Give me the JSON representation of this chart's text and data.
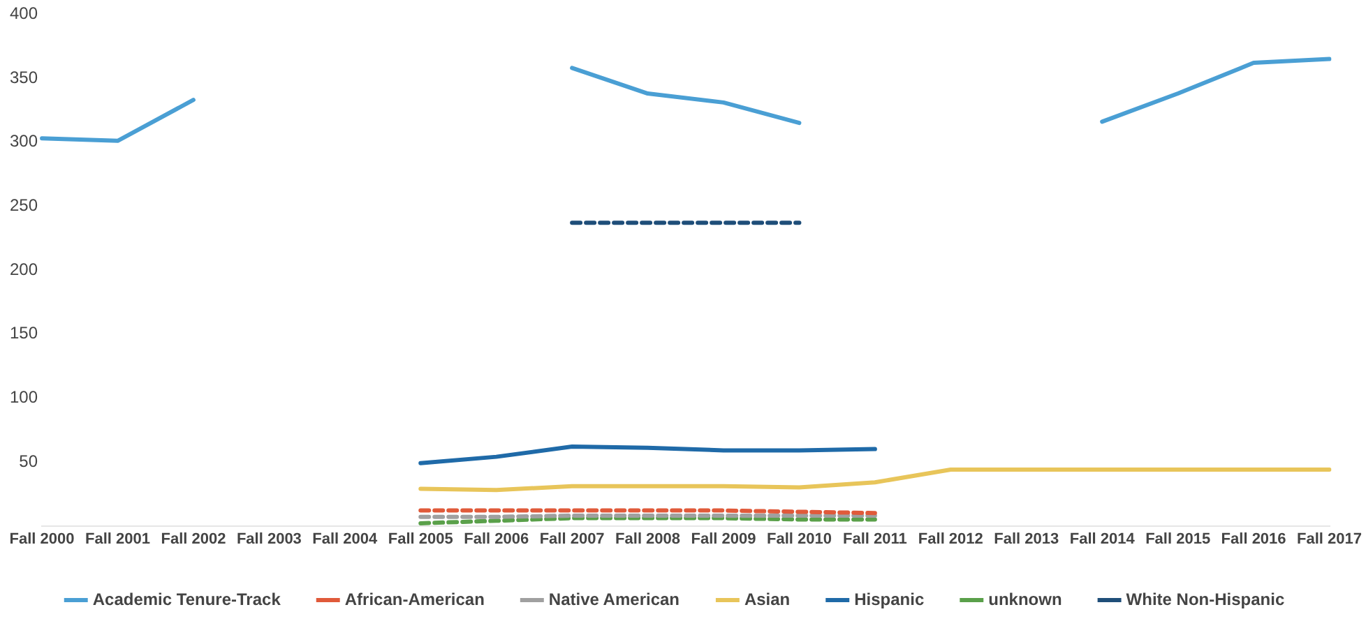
{
  "chart_data": {
    "type": "line",
    "categories": [
      "Fall 2000",
      "Fall 2001",
      "Fall 2002",
      "Fall 2003",
      "Fall 2004",
      "Fall 2005",
      "Fall 2006",
      "Fall 2007",
      "Fall 2008",
      "Fall 2009",
      "Fall 2010",
      "Fall 2011",
      "Fall 2012",
      "Fall 2013",
      "Fall 2014",
      "Fall 2015",
      "Fall 2016",
      "Fall 2017"
    ],
    "series": [
      {
        "name": "Academic Tenure-Track",
        "color": "#4a9fd4",
        "line_style": "solid",
        "values": [
          303,
          301,
          333,
          null,
          null,
          null,
          null,
          358,
          338,
          331,
          315,
          null,
          null,
          null,
          316,
          338,
          362,
          365
        ]
      },
      {
        "name": "African-American",
        "color": "#e05a3a",
        "line_style": "dashed",
        "values": [
          null,
          null,
          null,
          null,
          null,
          12,
          12,
          12,
          12,
          12,
          11,
          10,
          null,
          null,
          null,
          null,
          null,
          null
        ]
      },
      {
        "name": "Native American",
        "color": "#a0a0a0",
        "line_style": "dashed",
        "values": [
          null,
          null,
          null,
          null,
          null,
          7,
          7,
          8,
          8,
          8,
          8,
          8,
          null,
          null,
          null,
          null,
          null,
          null
        ]
      },
      {
        "name": "Asian",
        "color": "#e8c55a",
        "line_style": "solid",
        "values": [
          null,
          null,
          null,
          null,
          null,
          29,
          28,
          31,
          31,
          31,
          30,
          34,
          44,
          44,
          44,
          44,
          44,
          44
        ]
      },
      {
        "name": "Hispanic",
        "color": "#1f6aa8",
        "line_style": "solid",
        "values": [
          null,
          null,
          null,
          null,
          null,
          49,
          54,
          62,
          61,
          59,
          59,
          60,
          null,
          null,
          null,
          null,
          null,
          null
        ]
      },
      {
        "name": "unknown",
        "color": "#5aa04a",
        "line_style": "dashed",
        "values": [
          null,
          null,
          null,
          null,
          null,
          2,
          4,
          6,
          6,
          6,
          5,
          5,
          null,
          null,
          null,
          null,
          null,
          null
        ]
      },
      {
        "name": "White Non-Hispanic",
        "color": "#1f4e79",
        "line_style": "dashed",
        "values": [
          null,
          null,
          null,
          null,
          null,
          null,
          null,
          237,
          237,
          237,
          237,
          null,
          null,
          null,
          null,
          null,
          null,
          null
        ]
      }
    ],
    "ylim": [
      0,
      400
    ],
    "yticks": [
      50,
      100,
      150,
      200,
      250,
      300,
      350,
      400
    ],
    "grid": false,
    "legend": "bottom",
    "marker": "none"
  }
}
